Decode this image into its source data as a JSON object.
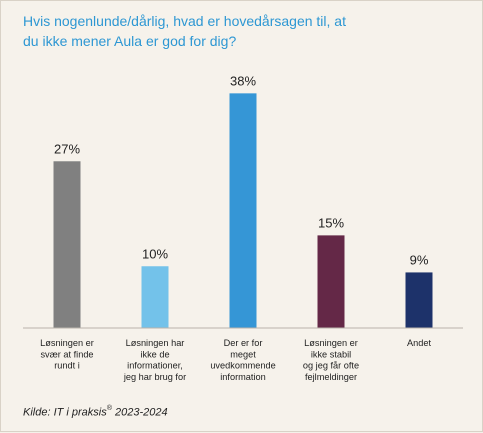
{
  "title": "Hvis nogenlunde/dårlig, hvad er hovedårsagen til, at\ndu ikke mener Aula er god for dig?",
  "source": {
    "prefix": "Kilde: IT i praksis",
    "registered": "®",
    "years": " 2023-2024"
  },
  "chart_data": {
    "type": "bar",
    "title": "Hvis nogenlunde/dårlig, hvad er hovedårsagen til, at du ikke mener Aula er god for dig?",
    "xlabel": "",
    "ylabel": "",
    "ylim": [
      0,
      40
    ],
    "grid": false,
    "legend": "none",
    "categories": [
      "Løsningen er svær at finde rundt i",
      "Løsningen har ikke de informationer, jeg har brug for",
      "Der er for meget uvedkommende information",
      "Løsningen er ikke stabil og jeg får ofte fejlmeldinger",
      "Andet"
    ],
    "category_lines": [
      [
        "Løsningen er",
        "svær at finde",
        "rundt i"
      ],
      [
        "Løsningen har",
        "ikke de",
        "informationer,",
        "jeg har brug for"
      ],
      [
        "Der er for",
        "meget",
        "uvedkommende",
        "information"
      ],
      [
        "Løsningen er",
        "ikke stabil",
        "og jeg får ofte",
        "fejlmeldinger"
      ],
      [
        "Andet"
      ]
    ],
    "values": [
      27,
      10,
      38,
      15,
      9
    ],
    "value_labels": [
      "27%",
      "10%",
      "38%",
      "15%",
      "9%"
    ],
    "colors": [
      "#808080",
      "#73c2ea",
      "#3596d6",
      "#642847",
      "#1d326a"
    ]
  }
}
